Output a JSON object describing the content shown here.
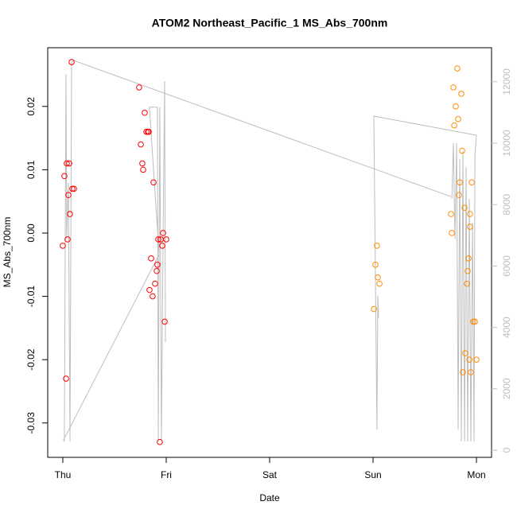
{
  "chart_data": {
    "type": "scatter",
    "title": "ATOM2 Northeast_Pacific_1 MS_Abs_700nm",
    "x_label": "Date",
    "y_label": "MS_Abs_700nm",
    "xlim": [
      -0.146,
      4.146
    ],
    "xticks": [
      {
        "value": 0,
        "label": "Thu"
      },
      {
        "value": 1,
        "label": "Fri"
      },
      {
        "value": 2,
        "label": "Sat"
      },
      {
        "value": 3,
        "label": "Sun"
      },
      {
        "value": 4,
        "label": "Mon"
      }
    ],
    "ylim": [
      -0.03543,
      0.02927
    ],
    "yticks": [
      -0.03,
      -0.02,
      -0.01,
      {
        "value": 0,
        "label": "0.00"
      },
      0.01,
      0.02
    ],
    "y2lim": [
      -233,
      13109
    ],
    "y2ticks": [
      0,
      2000,
      4000,
      6000,
      8000,
      10000,
      12000
    ],
    "series": [
      {
        "color": "#ff0000",
        "x": [
          0,
          0.015,
          0.031,
          0.038,
          0.046,
          0.054,
          0.062,
          0.069,
          0.085,
          0.092,
          0.108,
          0.738,
          0.754,
          0.769,
          0.777,
          0.792,
          0.808,
          0.823,
          0.831,
          0.854,
          0.838,
          0.869,
          0.877,
          0.892,
          0.908,
          0.915,
          0.923,
          0.938,
          0.946,
          0.962,
          0.969,
          0.985,
          1.0
        ],
        "values": [
          -0.002,
          0.009,
          -0.023,
          0.011,
          -0.001,
          0.006,
          0.011,
          0.003,
          0.027,
          0.007,
          0.007,
          0.023,
          0.014,
          0.011,
          0.01,
          0.019,
          0.016,
          0.016,
          0.016,
          -0.004,
          -0.009,
          -0.01,
          0.008,
          -0.008,
          -0.006,
          -0.005,
          -0.001,
          -0.033,
          -0.001,
          -0.002,
          0.0,
          -0.014,
          -0.001
        ]
      },
      {
        "color": "#ff8c00",
        "x": [
          3.008,
          3.023,
          3.038,
          3.046,
          3.062,
          3.754,
          3.762,
          3.777,
          3.785,
          3.8,
          3.815,
          3.823,
          3.831,
          3.838,
          3.854,
          3.862,
          3.869,
          3.885,
          3.892,
          3.908,
          3.915,
          3.923,
          3.931,
          3.938,
          3.938,
          3.946,
          3.954,
          3.969,
          3.985,
          4.0
        ],
        "values": [
          -0.012,
          -0.005,
          -0.002,
          -0.007,
          -0.008,
          0.003,
          0.0,
          0.023,
          0.017,
          0.02,
          0.026,
          0.018,
          0.006,
          0.008,
          0.022,
          0.013,
          -0.022,
          0.004,
          -0.019,
          -0.008,
          -0.006,
          -0.004,
          -0.02,
          0.001,
          0.003,
          -0.022,
          0.008,
          -0.014,
          -0.014,
          -0.02
        ]
      },
      {
        "type": "line",
        "axis": "y2",
        "color": "#bebebe",
        "x": [
          3.754,
          0.108,
          0.085,
          0.069,
          0.054,
          0.038,
          0.031,
          0.015,
          0.008,
          0.931,
          0.838,
          0.915,
          0.923,
          0.938,
          0.954,
          0.969,
          0.985,
          0.992,
          null,
          3.054,
          3.046,
          3.038,
          3.008,
          4.0,
          3.985,
          3.977,
          3.962,
          3.946,
          3.931,
          3.915,
          3.9,
          3.885,
          3.869,
          3.854,
          3.838,
          3.823,
          3.808,
          3.792,
          3.777,
          3.762
        ],
        "values": [
          8260,
          12690,
          12640,
          285,
          8700,
          6890,
          12250,
          285,
          340,
          6370,
          11170,
          11170,
          285,
          11170,
          285,
          6890,
          12020,
          3520,
          null,
          4300,
          5030,
          670,
          10880,
          10260,
          9610,
          285,
          7410,
          285,
          8190,
          285,
          9220,
          285,
          9740,
          285,
          9480,
          670,
          10000,
          6890,
          10000,
          8190
        ]
      }
    ]
  }
}
